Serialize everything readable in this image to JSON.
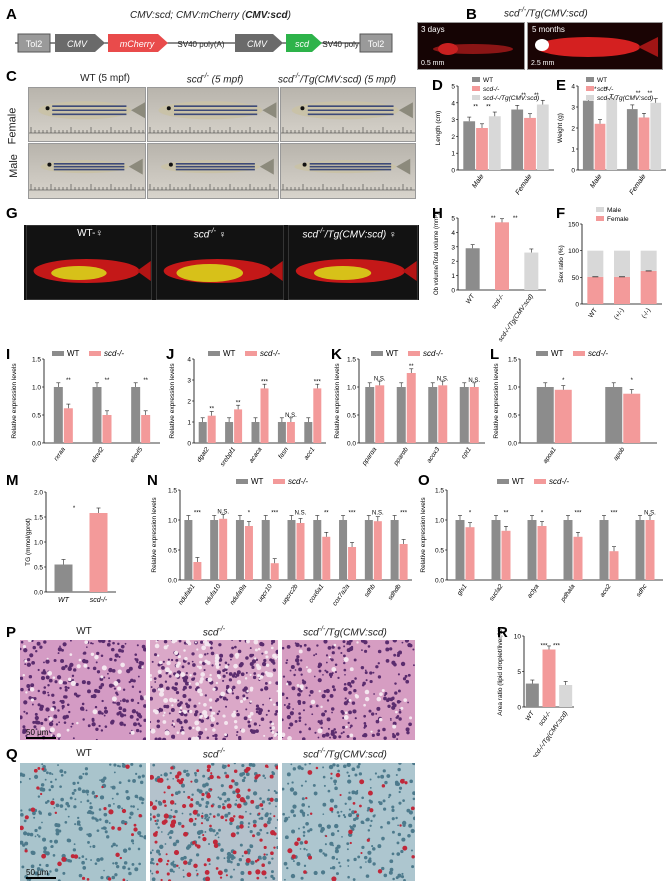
{
  "panels": {
    "A": "A",
    "B": "B",
    "C": "C",
    "D": "D",
    "E": "E",
    "F": "F",
    "G": "G",
    "H": "H",
    "I": "I",
    "J": "J",
    "K": "K",
    "L": "L",
    "M": "M",
    "N": "N",
    "O": "O",
    "P": "P",
    "Q": "Q",
    "R": "R"
  },
  "colors": {
    "wt": "#8c8c8c",
    "mut": "#f39a9a",
    "tg": "#d8d8d8",
    "cmv": "#6a6a6a",
    "mcherry": "#e94b4b",
    "scd": "#2db34a",
    "tol2": "#9a9a9a"
  },
  "construct": {
    "title_prefix": "CMV:scd; CMV:mCherry (",
    "title_bold": "CMV:scd",
    "title_suffix": ")",
    "parts": [
      "Tol2",
      "CMV",
      "mCherry",
      "SV40 poly(A)",
      "CMV",
      "scd",
      "SV40 poly(A)",
      "Tol2"
    ]
  },
  "panelB": {
    "title": "scd",
    "title_sup": "-/-",
    "title_rest": "/Tg(CMV:scd)",
    "img1_label": "3 days",
    "img1_scale": "0.5 mm",
    "img2_label": "5 months",
    "img2_scale": "2.5 mm"
  },
  "panelC": {
    "col1": "WT (5 mpf)",
    "col2": "scd",
    "col2_sup": "-/-",
    "col2_rest": " (5 mpf)",
    "col3": "scd",
    "col3_sup": "-/-",
    "col3_rest": "/Tg(CMV:scd) (5 mpf)",
    "row1": "Female",
    "row2": "Male"
  },
  "panelG": {
    "l1": "WT-♀",
    "l2": "scd",
    "l2_sup": "-/-",
    "l2_rest": " ♀",
    "l3": "scd",
    "l3_sup": "-/-",
    "l3_rest": "/Tg(CMV:scd) ♀"
  },
  "panelP": {
    "l1": "WT",
    "l2": "scd",
    "l2_sup": "-/-",
    "l3": "scd",
    "l3_sup": "-/-",
    "l3_rest": "/Tg(CMV:scd)",
    "scale": "50 μm"
  },
  "panelQ": {
    "l1": "WT",
    "l2": "scd",
    "l2_sup": "-/-",
    "l3": "scd",
    "l3_sup": "-/-",
    "l3_rest": "/Tg(CMV:scd)",
    "scale": "50 μm"
  },
  "legend": {
    "wt": "WT",
    "mut": "scd",
    "mut_sup": "-/-",
    "tg": "scd",
    "tg_sup": "-/-",
    "tg_rest": "/Tg(CMV:scd)",
    "male": "Male",
    "female": "Female"
  },
  "chart_data": [
    {
      "panel": "D",
      "type": "bar",
      "ylabel": "Length (cm)",
      "ylim": [
        0,
        5
      ],
      "yticks": [
        "0",
        "1",
        "2",
        "3",
        "4",
        "5"
      ],
      "ylim_actual": [
        0,
        0.5
      ],
      "ytick_values": [
        0,
        0.1,
        0.2,
        0.3,
        0.4,
        0.5
      ],
      "categories": [
        "Male",
        "Female"
      ],
      "series": [
        {
          "name": "WT",
          "values": [
            0.29,
            0.36
          ]
        },
        {
          "name": "scd-/-",
          "values": [
            0.25,
            0.31
          ]
        },
        {
          "name": "scd-/-/Tg(CMV:scd)",
          "values": [
            0.32,
            0.39
          ]
        }
      ],
      "annotations": [
        "**",
        "**",
        "**",
        "**"
      ]
    },
    {
      "panel": "E",
      "type": "bar",
      "ylabel": "Weight (g)",
      "ylim": [
        0,
        4
      ],
      "yticks": [
        "0",
        "1",
        "2",
        "3",
        "4"
      ],
      "categories": [
        "Male",
        "Female"
      ],
      "series": [
        {
          "name": "WT",
          "values": [
            3.3,
            2.9
          ]
        },
        {
          "name": "scd-/-",
          "values": [
            2.2,
            2.5
          ]
        },
        {
          "name": "scd-/-/Tg(CMV:scd)",
          "values": [
            3.4,
            3.2
          ]
        }
      ],
      "annotations": [
        "**",
        "**",
        "**",
        "**"
      ]
    },
    {
      "panel": "F",
      "type": "bar",
      "ylabel": "Sex ratio (%)",
      "ylim": [
        0,
        150
      ],
      "yticks": [
        "0",
        "50",
        "100",
        "150"
      ],
      "categories": [
        "WT",
        "(+/-)",
        "(-/-)"
      ],
      "series": [
        {
          "name": "Male",
          "values": [
            49,
            49,
            38
          ]
        },
        {
          "name": "Female",
          "values": [
            51,
            51,
            62
          ]
        }
      ]
    },
    {
      "panel": "H",
      "type": "bar",
      "ylabel": "Ob volume/Total volume (mm³)",
      "ylim": [
        0,
        5
      ],
      "yticks": [
        "0",
        "1",
        "2",
        "3",
        "4",
        "5"
      ],
      "categories": [
        "WT",
        "scd-/-",
        "scd-/-/Tg(CMV:scd)"
      ],
      "values": [
        2.9,
        4.7,
        2.6
      ],
      "annotations": [
        "**",
        "**"
      ]
    },
    {
      "panel": "I",
      "type": "bar",
      "ylabel": "Relative expression levels",
      "ylim": [
        0,
        1.5
      ],
      "yticks": [
        "0.0",
        "0.5",
        "1.0",
        "1.5"
      ],
      "categories": [
        "rxraa",
        "elovl2",
        "elovl5"
      ],
      "series": [
        {
          "name": "WT",
          "values": [
            1.0,
            1.0,
            1.0
          ]
        },
        {
          "name": "scd-/-",
          "values": [
            0.62,
            0.5,
            0.5
          ]
        }
      ],
      "annotations": [
        "**",
        "**",
        "**"
      ]
    },
    {
      "panel": "J",
      "type": "bar",
      "ylabel": "Relative expression levels",
      "ylim": [
        0,
        4
      ],
      "yticks": [
        "0",
        "1",
        "2",
        "3",
        "4"
      ],
      "categories": [
        "dgat2",
        "srebpf1",
        "acaca",
        "fasn",
        "acc1"
      ],
      "series": [
        {
          "name": "WT",
          "values": [
            1.0,
            1.0,
            1.0,
            1.0,
            1.0
          ]
        },
        {
          "name": "scd-/-",
          "values": [
            1.3,
            1.6,
            2.6,
            1.0,
            2.6
          ]
        }
      ],
      "annotations": [
        "**",
        "**",
        "***",
        "N.S.",
        "***"
      ]
    },
    {
      "panel": "K",
      "type": "bar",
      "ylabel": "Relative expression levels",
      "ylim": [
        0,
        1.5
      ],
      "yticks": [
        "0.0",
        "0.5",
        "1.0",
        "1.5"
      ],
      "categories": [
        "pparαa",
        "pparαb",
        "acox3",
        "cpt1"
      ],
      "series": [
        {
          "name": "WT",
          "values": [
            1.0,
            1.0,
            1.0,
            1.0
          ]
        },
        {
          "name": "scd-/-",
          "values": [
            1.03,
            1.25,
            1.03,
            1.0
          ]
        }
      ],
      "annotations": [
        "N.S.",
        "**",
        "N.S.",
        "N.S."
      ]
    },
    {
      "panel": "L",
      "type": "bar",
      "ylabel": "Relative expression levels",
      "ylim": [
        0,
        1.5
      ],
      "yticks": [
        "0.0",
        "0.5",
        "1.0",
        "1.5"
      ],
      "categories": [
        "apoa1",
        "apob"
      ],
      "series": [
        {
          "name": "WT",
          "values": [
            1.0,
            1.0
          ]
        },
        {
          "name": "scd-/-",
          "values": [
            0.95,
            0.88
          ]
        }
      ],
      "annotations": [
        "*",
        "*"
      ]
    },
    {
      "panel": "M",
      "type": "bar",
      "ylabel": "TG (mmol/gprot)",
      "ylim": [
        0,
        2
      ],
      "yticks": [
        "0.0",
        "0.5",
        "1.0",
        "1.5",
        "2.0"
      ],
      "categories": [
        "WT",
        "scd-/-"
      ],
      "values": [
        0.55,
        1.58
      ],
      "annotations": [
        "*"
      ]
    },
    {
      "panel": "N",
      "type": "bar",
      "ylabel": "Relative expression levels",
      "ylim": [
        0,
        1.5
      ],
      "yticks": [
        "0.0",
        "0.5",
        "1.0",
        "1.5"
      ],
      "categories": [
        "ndufab1",
        "ndufa10",
        "ndufa9a",
        "uqcr10",
        "uqcrc2b",
        "cox6a1",
        "cox7a2a",
        "sdhb",
        "sdhdb"
      ],
      "series": [
        {
          "name": "WT",
          "values": [
            1.0,
            1.0,
            1.0,
            1.0,
            1.0,
            1.0,
            1.0,
            1.0,
            1.0
          ]
        },
        {
          "name": "scd-/-",
          "values": [
            0.3,
            1.02,
            0.9,
            0.28,
            0.95,
            0.72,
            0.55,
            0.98,
            0.6
          ]
        }
      ],
      "annotations": [
        "***",
        "N.S.",
        "*",
        "***",
        "N.S.",
        "**",
        "***",
        "N.S.",
        "***"
      ]
    },
    {
      "panel": "O",
      "type": "bar",
      "ylabel": "Relative expression levels",
      "ylim": [
        0,
        1.5
      ],
      "yticks": [
        "0.0",
        "0.5",
        "1.0",
        "1.5"
      ],
      "categories": [
        "gls1",
        "sucla2",
        "aclya",
        "pdhala",
        "aco2",
        "sdhc"
      ],
      "series": [
        {
          "name": "WT",
          "values": [
            1.0,
            1.0,
            1.0,
            1.0,
            1.0,
            1.0
          ]
        },
        {
          "name": "scd-/-",
          "values": [
            0.88,
            0.82,
            0.9,
            0.72,
            0.48,
            1.0
          ]
        }
      ],
      "annotations": [
        "*",
        "**",
        "*",
        "***",
        "***",
        "N.S."
      ]
    },
    {
      "panel": "R",
      "type": "bar",
      "ylabel": "Area ratio (lipid droplet/liver,%)",
      "ylim": [
        0,
        10
      ],
      "yticks": [
        "0",
        "5",
        "10"
      ],
      "categories": [
        "WT",
        "scd-/-",
        "scd-/-/Tg(CMV:scd)"
      ],
      "values": [
        3.3,
        8.1,
        3.1
      ],
      "annotations": [
        "***",
        "***"
      ]
    }
  ]
}
